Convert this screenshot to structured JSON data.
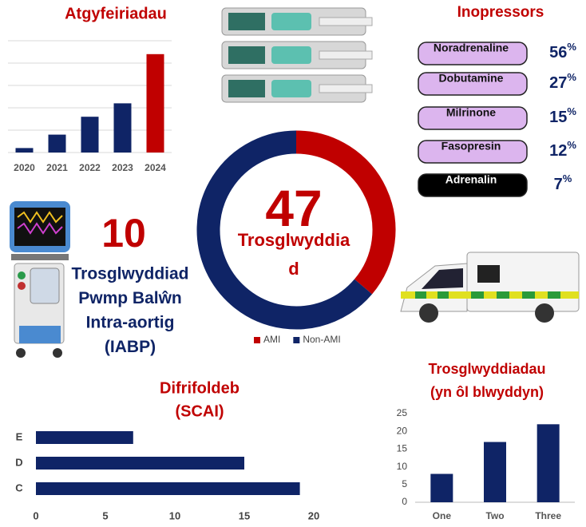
{
  "chart_data": [
    {
      "type": "bar",
      "title": "Atgyfeiriadau",
      "categories": [
        "2020",
        "2021",
        "2022",
        "2023",
        "2024"
      ],
      "values": [
        1,
        4,
        8,
        11,
        22
      ],
      "colors": [
        "#0f2466",
        "#0f2466",
        "#0f2466",
        "#0f2466",
        "#c00000"
      ],
      "ylim": [
        0,
        25
      ],
      "yticks": [
        0,
        5,
        10,
        15,
        20,
        25
      ],
      "grid": true,
      "ytick_labels": false
    },
    {
      "type": "donut",
      "center_value": 47,
      "center_text": "Trosglwyddiad",
      "categories": [
        "AMI",
        "Non-AMI"
      ],
      "values": [
        17,
        30
      ],
      "colors": [
        "#c00000",
        "#0f2466"
      ]
    },
    {
      "type": "hbar",
      "title": [
        "Difrifoldeb",
        "(SCAI)"
      ],
      "categories": [
        "E",
        "D",
        "C"
      ],
      "values": [
        7,
        15,
        19
      ],
      "color": "#0f2466",
      "xlim": [
        0,
        20
      ],
      "xticks": [
        0,
        5,
        10,
        15,
        20
      ]
    },
    {
      "type": "bar",
      "title": [
        "Trosglwyddiadau",
        "(yn ôl blwyddyn)"
      ],
      "categories": [
        "One",
        "Two",
        "Three"
      ],
      "values": [
        8,
        17,
        22
      ],
      "color": "#0f2466",
      "ylim": [
        0,
        25
      ],
      "yticks": [
        0,
        5,
        10,
        15,
        20,
        25
      ],
      "grid": false,
      "ytick_labels": true
    }
  ],
  "inopressors": {
    "title": "Inopressors",
    "items": [
      {
        "name": "Noradrenaline",
        "value_label": "56%",
        "color": "#dcb5ee"
      },
      {
        "name": "Dobutamine",
        "value_label": "27%",
        "color": "#dcb5ee"
      },
      {
        "name": "Milrinone",
        "value_label": "15%",
        "color": "#dcb5ee"
      },
      {
        "name": "Fasopresin",
        "value_label": "12%",
        "color": "#dcb5ee"
      },
      {
        "name": "Adrenalin",
        "value_label": "7%",
        "color": "#000000"
      }
    ]
  },
  "iabp": {
    "count": 10,
    "label": [
      "Trosglwyddiad",
      "Pwmp Balŵn",
      "Intra-aortig",
      "(IABP)"
    ]
  }
}
